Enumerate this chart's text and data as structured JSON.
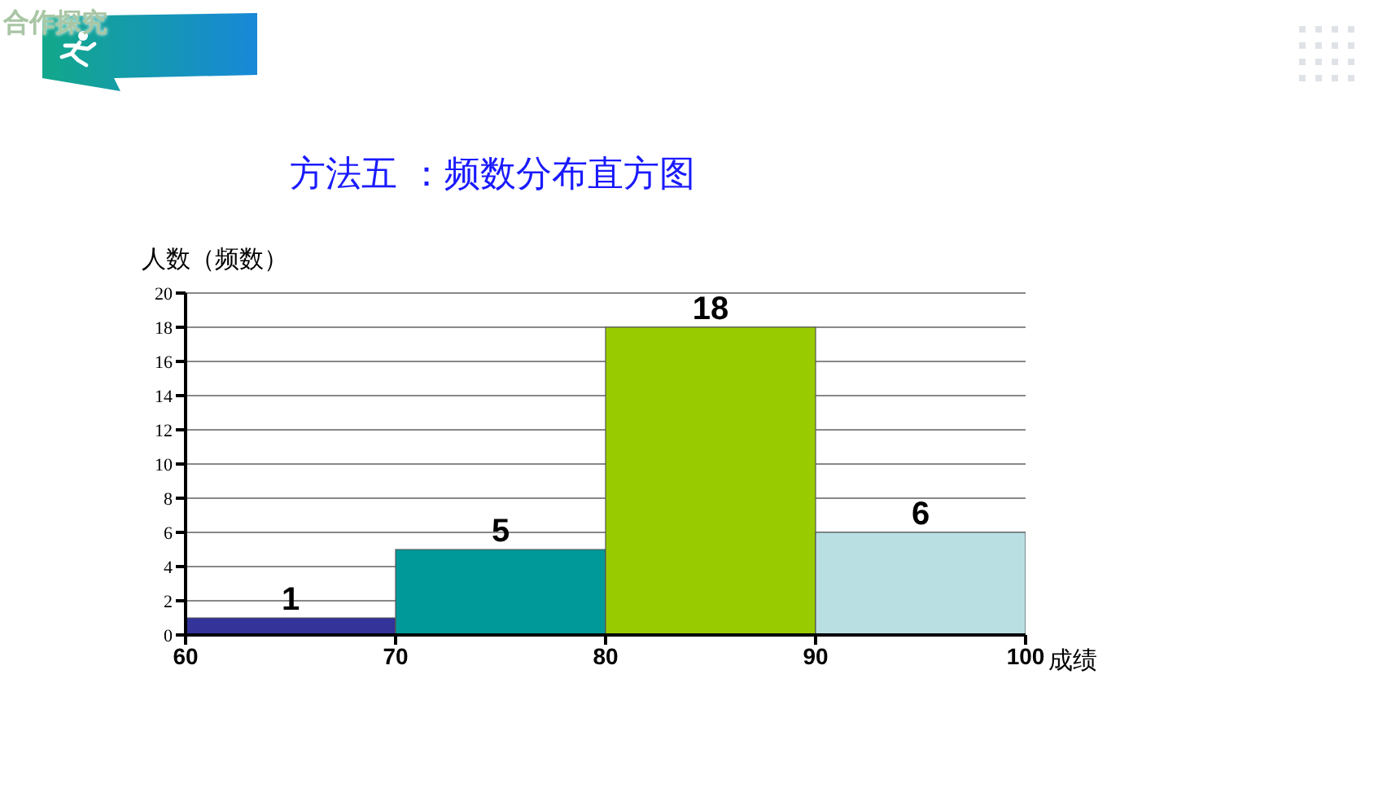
{
  "chart_data": {
    "type": "histogram",
    "title": "方法五 ：频数分布直方图",
    "xlabel": "成绩",
    "ylabel": "人数（频数）",
    "bins": [
      60,
      70,
      80,
      90,
      100
    ],
    "values": [
      1,
      5,
      18,
      6
    ],
    "colors": [
      "#333399",
      "#009999",
      "#99cc00",
      "#b9dfe3"
    ],
    "xlim": [
      60,
      100
    ],
    "xticks": [
      60,
      70,
      80,
      90,
      100
    ],
    "ylim": [
      0,
      20
    ],
    "yticks": [
      0,
      2,
      4,
      6,
      8,
      10,
      12,
      14,
      16,
      18,
      20
    ],
    "grid": "y",
    "data_labels": true,
    "annotations": [
      "合作探究"
    ]
  }
}
